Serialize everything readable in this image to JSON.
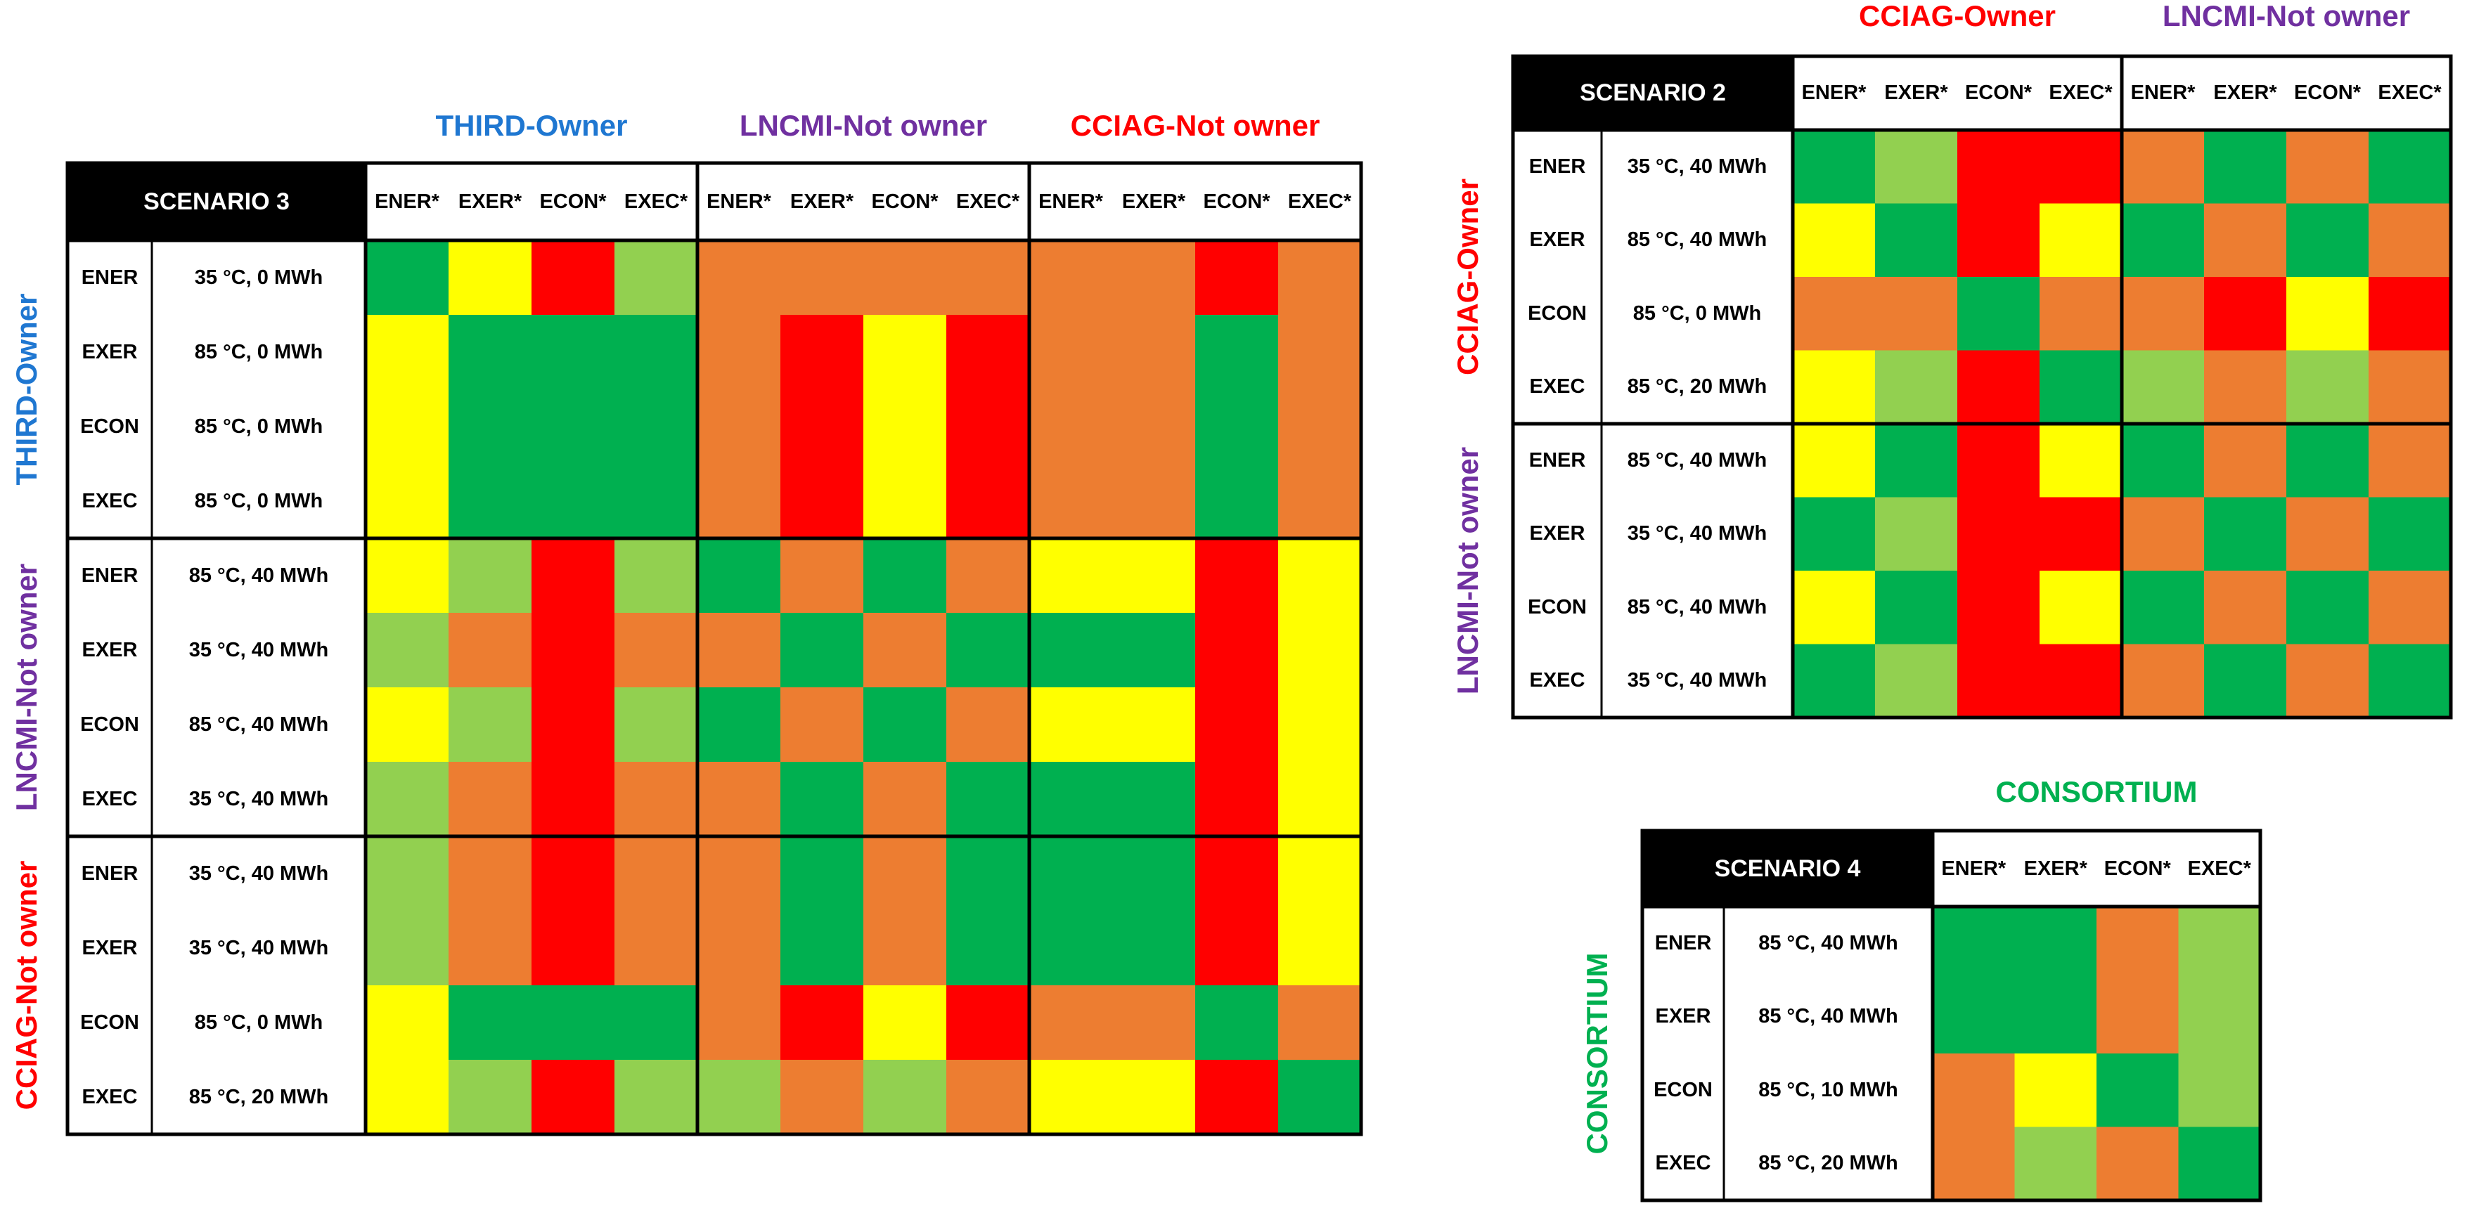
{
  "colors": {
    "DG": "#00b050",
    "LG": "#92d050",
    "Y": "#ffff00",
    "O": "#ed7d31",
    "R": "#ff0000",
    "owner_blue": "#1f77d1",
    "lncmi_purple": "#7030a0",
    "cciag_red": "#ff0000",
    "consortium_green": "#00b050"
  },
  "chart_data": [
    {
      "type": "heatmap",
      "id": "scenario3",
      "title": "SCENARIO 3",
      "column_groups": [
        {
          "label": "THIRD-Owner",
          "color_key": "owner_blue"
        },
        {
          "label": "LNCMI-Not owner",
          "color_key": "lncmi_purple"
        },
        {
          "label": "CCIAG-Not owner",
          "color_key": "cciag_red"
        }
      ],
      "row_groups": [
        {
          "label": "THIRD-Owner",
          "color_key": "owner_blue"
        },
        {
          "label": "LNCMI-Not owner",
          "color_key": "lncmi_purple"
        },
        {
          "label": "CCIAG-Not owner",
          "color_key": "cciag_red"
        }
      ],
      "col_labels": [
        "ENER*",
        "EXER*",
        "ECON*",
        "EXEC*"
      ],
      "row_codes": [
        "ENER",
        "EXER",
        "ECON",
        "EXEC"
      ],
      "row_conditions": [
        [
          "35 °C, 0 MWh",
          "85 °C, 0 MWh",
          "85 °C, 0 MWh",
          "85 °C, 0 MWh"
        ],
        [
          "85 °C, 40 MWh",
          "35 °C, 40 MWh",
          "85 °C, 40 MWh",
          "35 °C, 40 MWh"
        ],
        [
          "35 °C, 40 MWh",
          "35 °C, 40 MWh",
          "85 °C, 0 MWh",
          "85 °C, 20 MWh"
        ]
      ],
      "cells": [
        [
          "DG",
          "Y",
          "R",
          "LG",
          "O",
          "O",
          "O",
          "O",
          "O",
          "O",
          "R",
          "O"
        ],
        [
          "Y",
          "DG",
          "DG",
          "DG",
          "O",
          "R",
          "Y",
          "R",
          "O",
          "O",
          "DG",
          "O"
        ],
        [
          "Y",
          "DG",
          "DG",
          "DG",
          "O",
          "R",
          "Y",
          "R",
          "O",
          "O",
          "DG",
          "O"
        ],
        [
          "Y",
          "DG",
          "DG",
          "DG",
          "O",
          "R",
          "Y",
          "R",
          "O",
          "O",
          "DG",
          "O"
        ],
        [
          "Y",
          "LG",
          "R",
          "LG",
          "DG",
          "O",
          "DG",
          "O",
          "Y",
          "Y",
          "R",
          "Y"
        ],
        [
          "LG",
          "O",
          "R",
          "O",
          "O",
          "DG",
          "O",
          "DG",
          "DG",
          "DG",
          "R",
          "Y"
        ],
        [
          "Y",
          "LG",
          "R",
          "LG",
          "DG",
          "O",
          "DG",
          "O",
          "Y",
          "Y",
          "R",
          "Y"
        ],
        [
          "LG",
          "O",
          "R",
          "O",
          "O",
          "DG",
          "O",
          "DG",
          "DG",
          "DG",
          "R",
          "Y"
        ],
        [
          "LG",
          "O",
          "R",
          "O",
          "O",
          "DG",
          "O",
          "DG",
          "DG",
          "DG",
          "R",
          "Y"
        ],
        [
          "LG",
          "O",
          "R",
          "O",
          "O",
          "DG",
          "O",
          "DG",
          "DG",
          "DG",
          "R",
          "Y"
        ],
        [
          "Y",
          "DG",
          "DG",
          "DG",
          "O",
          "R",
          "Y",
          "R",
          "O",
          "O",
          "DG",
          "O"
        ],
        [
          "Y",
          "LG",
          "R",
          "LG",
          "LG",
          "O",
          "LG",
          "O",
          "Y",
          "Y",
          "R",
          "DG"
        ]
      ]
    },
    {
      "type": "heatmap",
      "id": "scenario2",
      "title": "SCENARIO 2",
      "column_groups": [
        {
          "label": "CCIAG-Owner",
          "color_key": "cciag_red"
        },
        {
          "label": "LNCMI-Not owner",
          "color_key": "lncmi_purple"
        }
      ],
      "row_groups": [
        {
          "label": "CCIAG-Owner",
          "color_key": "cciag_red"
        },
        {
          "label": "LNCMI-Not owner",
          "color_key": "lncmi_purple"
        }
      ],
      "col_labels": [
        "ENER*",
        "EXER*",
        "ECON*",
        "EXEC*"
      ],
      "row_codes": [
        "ENER",
        "EXER",
        "ECON",
        "EXEC"
      ],
      "row_conditions": [
        [
          "35 °C, 40 MWh",
          "85 °C, 40 MWh",
          "85 °C, 0 MWh",
          "85 °C, 20 MWh"
        ],
        [
          "85 °C, 40 MWh",
          "35 °C, 40 MWh",
          "85 °C, 40 MWh",
          "35 °C, 40 MWh"
        ]
      ],
      "cells": [
        [
          "DG",
          "LG",
          "R",
          "R",
          "O",
          "DG",
          "O",
          "DG"
        ],
        [
          "Y",
          "DG",
          "R",
          "Y",
          "DG",
          "O",
          "DG",
          "O"
        ],
        [
          "O",
          "O",
          "DG",
          "O",
          "O",
          "R",
          "Y",
          "R"
        ],
        [
          "Y",
          "LG",
          "R",
          "DG",
          "LG",
          "O",
          "LG",
          "O"
        ],
        [
          "Y",
          "DG",
          "R",
          "Y",
          "DG",
          "O",
          "DG",
          "O"
        ],
        [
          "DG",
          "LG",
          "R",
          "R",
          "O",
          "DG",
          "O",
          "DG"
        ],
        [
          "Y",
          "DG",
          "R",
          "Y",
          "DG",
          "O",
          "DG",
          "O"
        ],
        [
          "DG",
          "LG",
          "R",
          "R",
          "O",
          "DG",
          "O",
          "DG"
        ]
      ]
    },
    {
      "type": "heatmap",
      "id": "scenario4",
      "title": "SCENARIO 4",
      "column_groups": [
        {
          "label": "CONSORTIUM",
          "color_key": "consortium_green"
        }
      ],
      "row_groups": [
        {
          "label": "CONSORTIUM",
          "color_key": "consortium_green"
        }
      ],
      "col_labels": [
        "ENER*",
        "EXER*",
        "ECON*",
        "EXEC*"
      ],
      "row_codes": [
        "ENER",
        "EXER",
        "ECON",
        "EXEC"
      ],
      "row_conditions": [
        [
          "85 °C, 40 MWh",
          "85 °C, 40 MWh",
          "85 °C, 10 MWh",
          "85 °C, 20 MWh"
        ]
      ],
      "cells": [
        [
          "DG",
          "DG",
          "O",
          "LG"
        ],
        [
          "DG",
          "DG",
          "O",
          "LG"
        ],
        [
          "O",
          "Y",
          "DG",
          "LG"
        ],
        [
          "O",
          "LG",
          "O",
          "DG"
        ]
      ]
    }
  ]
}
